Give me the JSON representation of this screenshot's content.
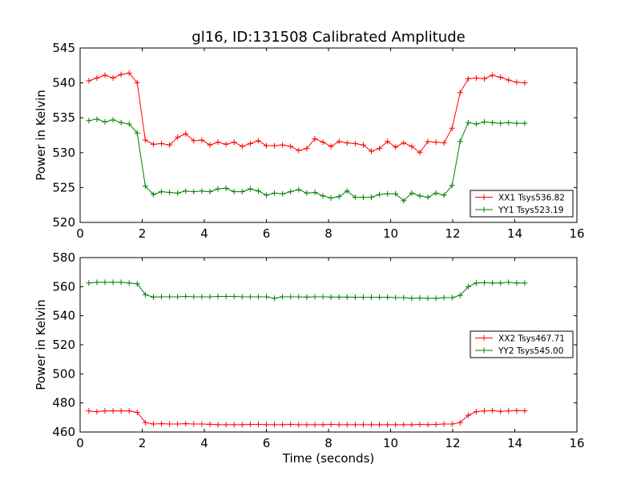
{
  "title": "gl16, ID:131508 Calibrated Amplitude",
  "chart_data": [
    {
      "type": "line",
      "ylabel": "Power in Kelvin",
      "xlabel": "",
      "xlim": [
        0,
        16
      ],
      "ylim": [
        520,
        545
      ],
      "xticks": [
        0,
        2,
        4,
        6,
        8,
        10,
        12,
        14,
        16
      ],
      "yticks": [
        520,
        525,
        530,
        535,
        540,
        545
      ],
      "legend_position": "lower-right",
      "x": [
        0.28,
        0.54,
        0.8,
        1.06,
        1.32,
        1.58,
        1.84,
        2.1,
        2.36,
        2.62,
        2.88,
        3.14,
        3.4,
        3.66,
        3.92,
        4.18,
        4.44,
        4.7,
        4.96,
        5.22,
        5.48,
        5.74,
        6.0,
        6.26,
        6.52,
        6.78,
        7.04,
        7.3,
        7.56,
        7.82,
        8.08,
        8.34,
        8.6,
        8.86,
        9.12,
        9.38,
        9.64,
        9.9,
        10.16,
        10.42,
        10.68,
        10.94,
        11.2,
        11.46,
        11.72,
        11.98,
        12.24,
        12.5,
        12.76,
        13.02,
        13.28,
        13.54,
        13.8,
        14.06,
        14.32
      ],
      "series": [
        {
          "name": "XX1 Tsys536.82",
          "color": "#ff0000",
          "values": [
            540.3,
            540.7,
            541.1,
            540.7,
            541.2,
            541.4,
            540.0,
            531.8,
            531.2,
            531.3,
            531.1,
            532.2,
            532.7,
            531.7,
            531.8,
            531.1,
            531.5,
            531.2,
            531.5,
            530.9,
            531.3,
            531.7,
            531.0,
            531.0,
            531.1,
            530.9,
            530.3,
            530.6,
            532.0,
            531.5,
            530.9,
            531.6,
            531.4,
            531.3,
            531.1,
            530.2,
            530.6,
            531.6,
            530.8,
            531.4,
            530.9,
            530.0,
            531.6,
            531.5,
            531.4,
            533.5,
            538.6,
            540.6,
            540.7,
            540.6,
            541.1,
            540.8,
            540.4,
            540.1,
            540.0
          ]
        },
        {
          "name": "YY1 Tsys523.19",
          "color": "#008000",
          "values": [
            534.6,
            534.8,
            534.4,
            534.7,
            534.3,
            534.1,
            532.8,
            525.2,
            524.0,
            524.4,
            524.3,
            524.2,
            524.5,
            524.4,
            524.5,
            524.4,
            524.8,
            524.9,
            524.4,
            524.4,
            524.8,
            524.5,
            523.9,
            524.2,
            524.1,
            524.4,
            524.7,
            524.2,
            524.3,
            523.8,
            523.5,
            523.7,
            524.5,
            523.6,
            523.6,
            523.6,
            524.0,
            524.1,
            524.1,
            523.1,
            524.2,
            523.8,
            523.6,
            524.2,
            523.9,
            525.3,
            531.6,
            534.3,
            534.1,
            534.4,
            534.3,
            534.2,
            534.3,
            534.2,
            534.2
          ]
        }
      ]
    },
    {
      "type": "line",
      "ylabel": "Power in Kelvin",
      "xlabel": "Time (seconds)",
      "xlim": [
        0,
        16
      ],
      "ylim": [
        460,
        580
      ],
      "xticks": [
        0,
        2,
        4,
        6,
        8,
        10,
        12,
        14,
        16
      ],
      "yticks": [
        460,
        480,
        500,
        520,
        540,
        560,
        580
      ],
      "legend_position": "center-right",
      "x": [
        0.28,
        0.54,
        0.8,
        1.06,
        1.32,
        1.58,
        1.84,
        2.1,
        2.36,
        2.62,
        2.88,
        3.14,
        3.4,
        3.66,
        3.92,
        4.18,
        4.44,
        4.7,
        4.96,
        5.22,
        5.48,
        5.74,
        6.0,
        6.26,
        6.52,
        6.78,
        7.04,
        7.3,
        7.56,
        7.82,
        8.08,
        8.34,
        8.6,
        8.86,
        9.12,
        9.38,
        9.64,
        9.9,
        10.16,
        10.42,
        10.68,
        10.94,
        11.2,
        11.46,
        11.72,
        11.98,
        12.24,
        12.5,
        12.76,
        13.02,
        13.28,
        13.54,
        13.8,
        14.06,
        14.32
      ],
      "series": [
        {
          "name": "XX2 Tsys467.71",
          "color": "#ff0000",
          "values": [
            474.5,
            474.0,
            474.5,
            474.5,
            474.5,
            474.5,
            473.5,
            466.5,
            465.5,
            465.7,
            465.5,
            465.5,
            465.7,
            465.5,
            465.5,
            465.3,
            465.0,
            465.0,
            465.0,
            465.0,
            465.2,
            465.2,
            465.0,
            465.0,
            465.0,
            465.2,
            465.0,
            465.0,
            465.0,
            465.0,
            465.2,
            465.0,
            465.0,
            465.0,
            465.0,
            465.0,
            465.0,
            465.0,
            465.0,
            465.0,
            465.0,
            465.2,
            465.0,
            465.2,
            465.5,
            465.5,
            466.5,
            471.5,
            474.0,
            474.5,
            474.7,
            474.2,
            474.5,
            474.7,
            474.5
          ]
        },
        {
          "name": "YY2 Tsys545.00",
          "color": "#008000",
          "values": [
            562.5,
            563.0,
            563.0,
            563.0,
            563.0,
            562.5,
            562.0,
            554.5,
            552.8,
            553.0,
            553.0,
            553.0,
            553.3,
            553.0,
            553.0,
            553.0,
            553.3,
            553.3,
            553.3,
            553.0,
            553.0,
            553.0,
            553.0,
            552.0,
            553.0,
            553.0,
            553.0,
            552.8,
            553.0,
            553.0,
            552.8,
            552.8,
            552.8,
            552.7,
            552.7,
            552.7,
            552.7,
            552.7,
            552.5,
            552.5,
            552.0,
            552.2,
            552.0,
            552.0,
            552.5,
            552.5,
            554.0,
            560.0,
            562.5,
            562.7,
            562.5,
            562.5,
            563.0,
            562.5,
            562.5
          ]
        }
      ]
    }
  ]
}
